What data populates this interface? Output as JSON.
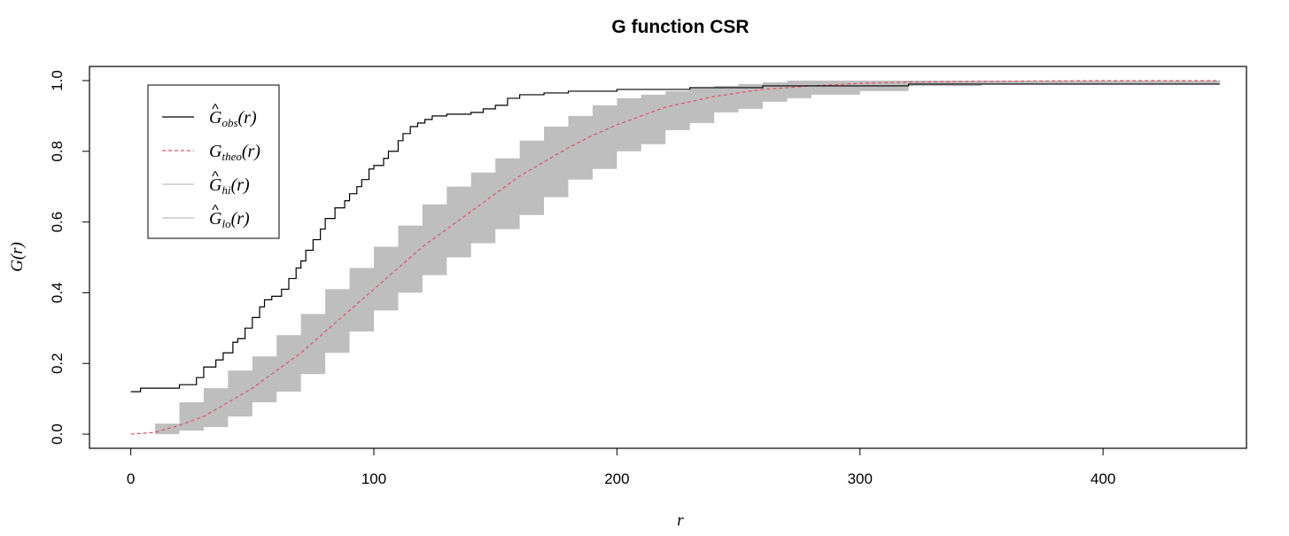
{
  "chart_data": {
    "type": "line",
    "title": "G function CSR",
    "xlabel": "r",
    "ylabel": "G(r)",
    "xlim": [
      -17,
      459
    ],
    "ylim": [
      -0.04,
      1.04
    ],
    "x_ticks": [
      0,
      100,
      200,
      300,
      400
    ],
    "y_ticks": [
      0.0,
      0.2,
      0.4,
      0.6,
      0.8,
      1.0
    ],
    "x_tick_labels": [
      "0",
      "100",
      "200",
      "300",
      "400"
    ],
    "y_tick_labels": [
      "0.0",
      "0.2",
      "0.4",
      "0.6",
      "0.8",
      "1.0"
    ],
    "grid": false,
    "legend": {
      "position": "top-left",
      "entries": [
        {
          "base": "G",
          "sub": "obs",
          "arg": "(r)",
          "hat": true,
          "style": "solid",
          "color": "#000000"
        },
        {
          "base": "G",
          "sub": "theo",
          "arg": "(r)",
          "hat": false,
          "style": "dashed",
          "color": "#DF536B"
        },
        {
          "base": "G",
          "sub": "hi",
          "arg": "(r)",
          "hat": true,
          "style": "solid",
          "color": "#BEBEBE"
        },
        {
          "base": "G",
          "sub": "lo",
          "arg": "(r)",
          "hat": true,
          "style": "solid",
          "color": "#BEBEBE"
        }
      ]
    },
    "series": [
      {
        "name": "obs",
        "style": "step",
        "color": "#000000",
        "x": [
          0,
          4,
          20,
          27,
          30,
          35,
          38,
          42,
          44,
          47,
          50,
          53,
          55,
          58,
          62,
          65,
          68,
          70,
          72,
          75,
          78,
          80,
          84,
          88,
          90,
          93,
          95,
          98,
          100,
          104,
          106,
          110,
          112,
          115,
          118,
          121,
          124,
          130,
          140,
          145,
          150,
          155,
          160,
          170,
          180,
          200,
          230,
          260,
          320,
          448
        ],
        "y": [
          0.12,
          0.13,
          0.14,
          0.16,
          0.19,
          0.21,
          0.23,
          0.26,
          0.27,
          0.3,
          0.33,
          0.36,
          0.38,
          0.39,
          0.41,
          0.44,
          0.47,
          0.49,
          0.52,
          0.55,
          0.58,
          0.61,
          0.64,
          0.66,
          0.68,
          0.7,
          0.72,
          0.75,
          0.76,
          0.78,
          0.8,
          0.83,
          0.85,
          0.87,
          0.88,
          0.89,
          0.9,
          0.905,
          0.91,
          0.92,
          0.93,
          0.95,
          0.96,
          0.965,
          0.97,
          0.975,
          0.98,
          0.985,
          0.99,
          0.99
        ]
      },
      {
        "name": "theo",
        "style": "dashed",
        "color": "#DF536B",
        "x": [
          0,
          10,
          20,
          30,
          40,
          50,
          60,
          70,
          80,
          90,
          100,
          110,
          120,
          130,
          140,
          150,
          160,
          170,
          180,
          190,
          200,
          210,
          220,
          230,
          240,
          250,
          260,
          280,
          300,
          320,
          350,
          400,
          448
        ],
        "y": [
          0.0,
          0.005,
          0.025,
          0.05,
          0.09,
          0.13,
          0.18,
          0.23,
          0.29,
          0.35,
          0.41,
          0.47,
          0.53,
          0.58,
          0.63,
          0.68,
          0.73,
          0.77,
          0.81,
          0.845,
          0.875,
          0.9,
          0.925,
          0.94,
          0.955,
          0.965,
          0.975,
          0.985,
          0.992,
          0.996,
          0.998,
          1.0,
          1.0
        ]
      }
    ],
    "envelope": {
      "name": "hi-lo",
      "color": "#BEBEBE",
      "x": [
        0,
        10,
        20,
        30,
        40,
        50,
        60,
        70,
        80,
        90,
        100,
        110,
        120,
        130,
        140,
        150,
        160,
        170,
        180,
        190,
        200,
        210,
        220,
        230,
        240,
        250,
        260,
        270,
        280,
        300,
        320,
        350,
        400,
        448
      ],
      "hi": [
        0.0,
        0.03,
        0.09,
        0.13,
        0.18,
        0.22,
        0.28,
        0.34,
        0.41,
        0.47,
        0.53,
        0.59,
        0.65,
        0.7,
        0.74,
        0.78,
        0.83,
        0.87,
        0.9,
        0.93,
        0.95,
        0.96,
        0.97,
        0.98,
        0.985,
        0.99,
        0.995,
        1.0,
        1.0,
        1.0,
        1.0,
        1.0,
        1.0,
        1.0
      ],
      "lo": [
        0.0,
        0.0,
        0.0,
        0.01,
        0.02,
        0.05,
        0.09,
        0.12,
        0.17,
        0.23,
        0.29,
        0.35,
        0.4,
        0.45,
        0.5,
        0.54,
        0.58,
        0.62,
        0.67,
        0.72,
        0.75,
        0.8,
        0.82,
        0.86,
        0.88,
        0.91,
        0.92,
        0.94,
        0.95,
        0.96,
        0.97,
        0.985,
        0.99,
        0.99
      ]
    }
  }
}
